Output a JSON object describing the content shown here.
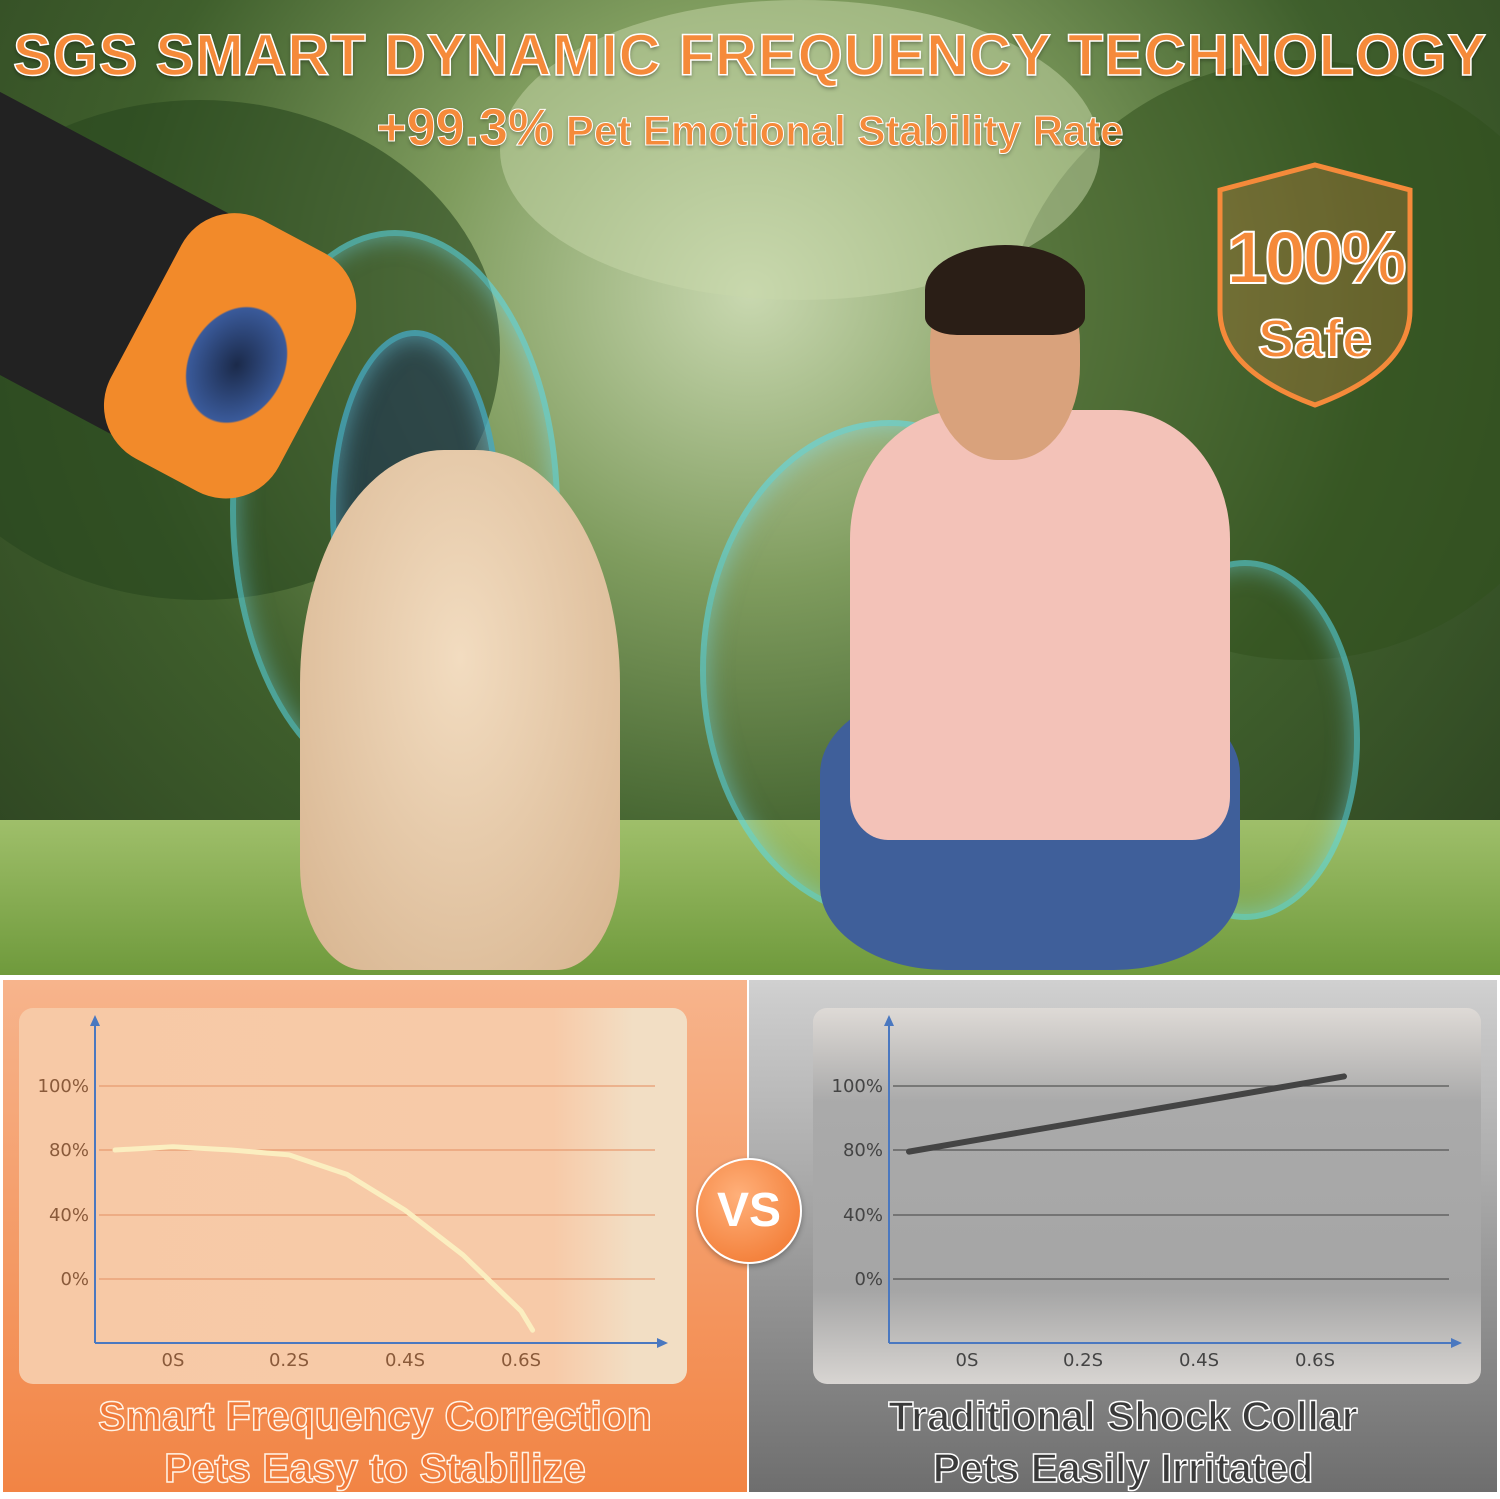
{
  "headline": {
    "title": "SGS SMART DYNAMIC FREQUENCY TECHNOLOGY",
    "stat": "+99.3%",
    "stat_label": "Pet Emotional Stability Rate"
  },
  "badge": {
    "percent": "100%",
    "label": "Safe"
  },
  "vs_label": "VS",
  "colors": {
    "accent": "#f58a3a",
    "left_panel": "#f28444",
    "right_panel": "#8a8a8a",
    "axis": "#4a78c0",
    "left_line": "#fbeec0",
    "right_line": "#444444"
  },
  "chart_data": [
    {
      "type": "line",
      "title": "",
      "xlabel": "",
      "ylabel": "",
      "x_ticks": [
        "0S",
        "0.2S",
        "0.4S",
        "0.6S"
      ],
      "y_ticks": [
        "0%",
        "40%",
        "80%",
        "100%"
      ],
      "grid": true,
      "series": [
        {
          "x": [
            -0.1,
            0,
            0.1,
            0.2,
            0.3,
            0.4,
            0.5,
            0.6,
            0.62
          ],
          "y": [
            80,
            81,
            80,
            77,
            65,
            43,
            15,
            -20,
            -32
          ]
        }
      ],
      "caption": [
        "Smart Frequency Correction",
        "Pets Easy to Stabilize"
      ]
    },
    {
      "type": "line",
      "title": "",
      "xlabel": "",
      "ylabel": "",
      "x_ticks": [
        "0S",
        "0.2S",
        "0.4S",
        "0.6S"
      ],
      "y_ticks": [
        "0%",
        "40%",
        "80%",
        "100%"
      ],
      "grid": true,
      "series": [
        {
          "x": [
            -0.1,
            0.65
          ],
          "y": [
            79,
            103
          ]
        }
      ],
      "caption": [
        "Traditional Shock Collar",
        "Pets Easily Irritated"
      ]
    }
  ]
}
